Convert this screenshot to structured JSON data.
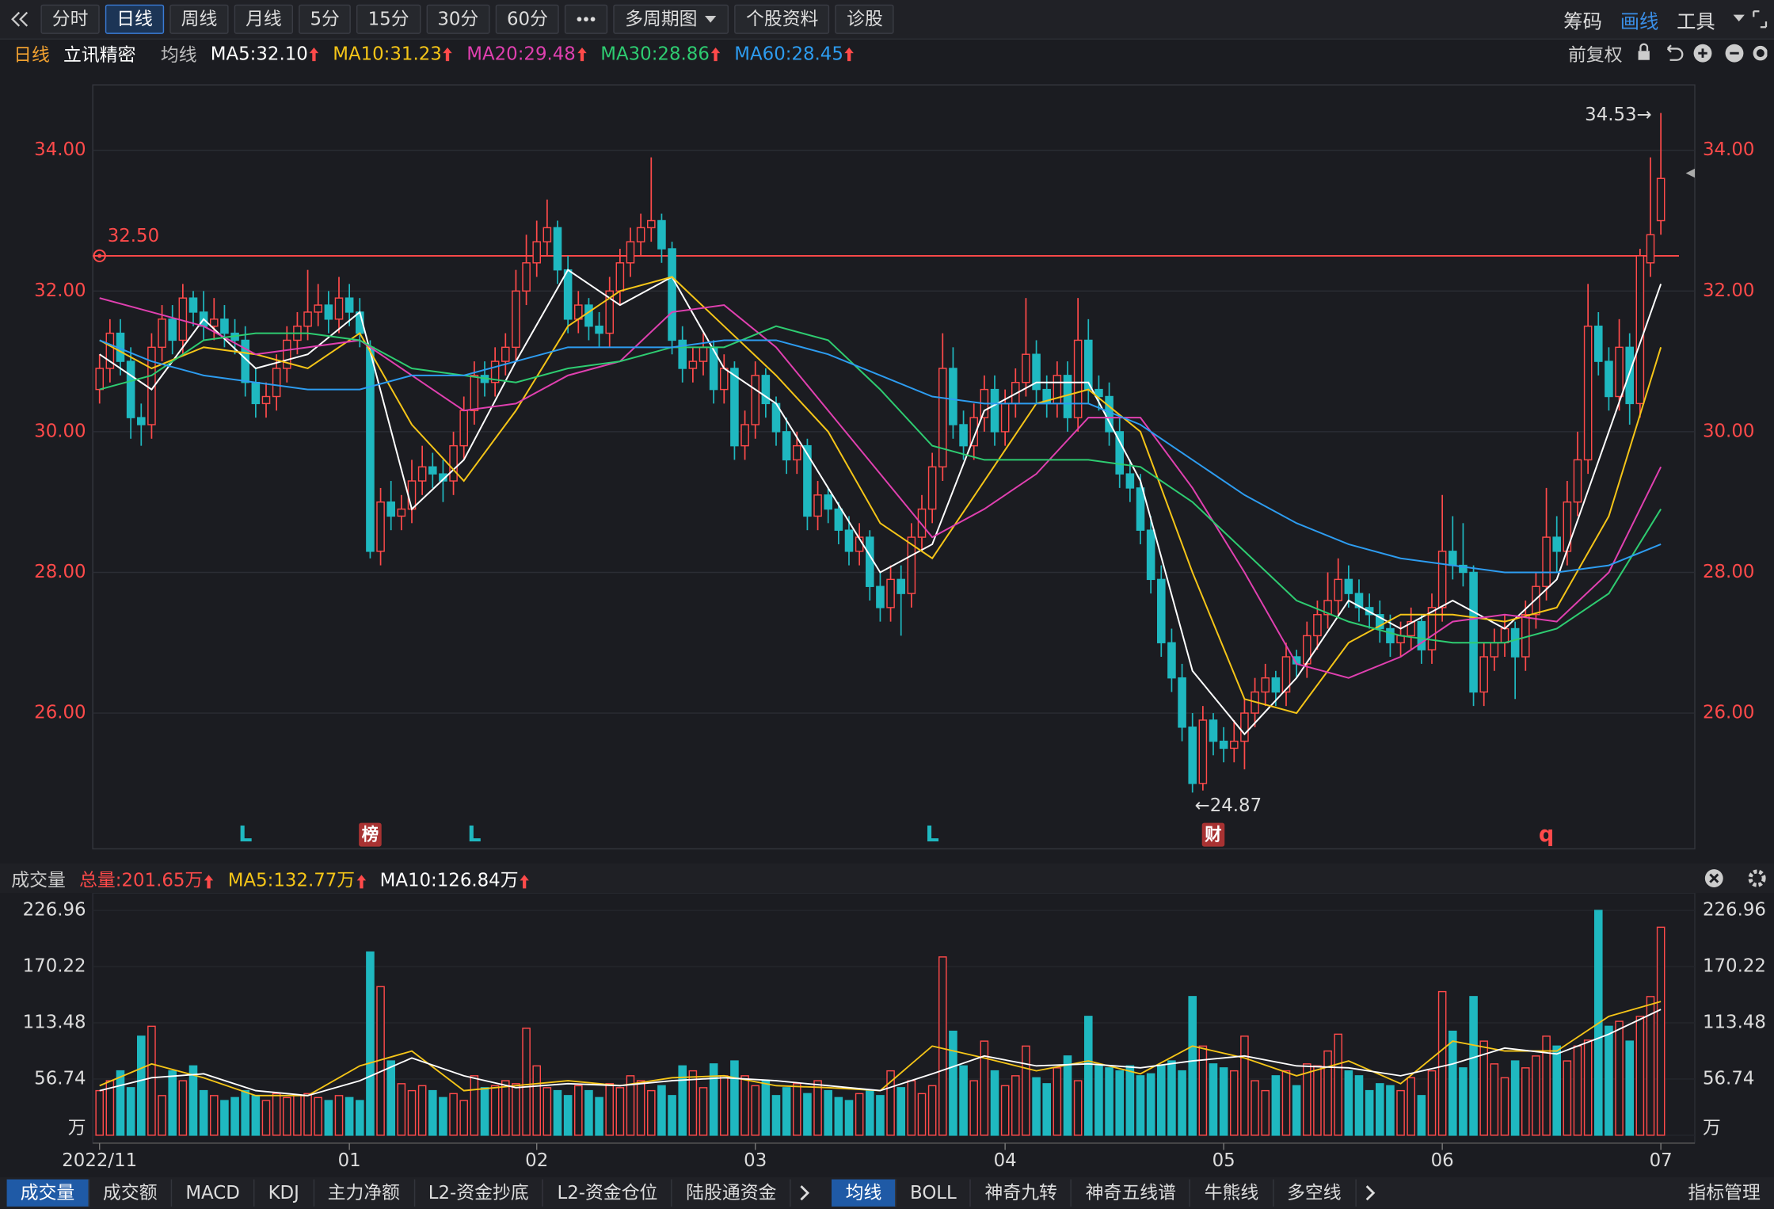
{
  "toolbar": {
    "tabs": [
      "分时",
      "日线",
      "周线",
      "月线",
      "5分",
      "15分",
      "30分",
      "60分",
      "多周期图",
      "个股资料",
      "诊股"
    ],
    "active": 1,
    "right": [
      "筹码",
      "画线",
      "工具"
    ]
  },
  "info": {
    "period": "日线",
    "stock": "立讯精密",
    "indicator": "均线",
    "restore": "前复权"
  },
  "chart_data": [
    {
      "type": "candlestick",
      "up_color": "#ff4a4a",
      "down_color": "#1fb8c0",
      "xlim": [
        0,
        150
      ],
      "ylim": [
        24.07,
        34.93
      ],
      "yticks": [
        {
          "value": 26,
          "label": "26.00"
        },
        {
          "value": 28,
          "label": "28.00"
        },
        {
          "value": 30,
          "label": "30.00"
        },
        {
          "value": 32,
          "label": "32.00"
        },
        {
          "value": 34,
          "label": "34.00"
        }
      ],
      "grid": true,
      "open": [
        30.6,
        30.9,
        31.4,
        31.0,
        30.2,
        30.1,
        31.2,
        31.6,
        31.3,
        31.9,
        31.7,
        31.5,
        31.6,
        31.4,
        31.3,
        30.7,
        30.4,
        30.5,
        30.9,
        31.3,
        31.5,
        31.7,
        31.8,
        31.6,
        31.9,
        31.7,
        31.2,
        28.3,
        29.0,
        28.8,
        28.9,
        29.3,
        29.5,
        29.4,
        29.3,
        29.8,
        30.3,
        30.8,
        30.7,
        31.0,
        31.2,
        32.0,
        32.4,
        32.7,
        32.9,
        32.3,
        31.6,
        31.8,
        31.5,
        31.4,
        32.0,
        32.4,
        32.7,
        32.9,
        33.0,
        32.6,
        31.3,
        30.9,
        31.0,
        31.2,
        30.6,
        30.9,
        29.8,
        30.1,
        30.8,
        30.4,
        30.0,
        29.6,
        29.8,
        28.8,
        29.1,
        28.9,
        28.6,
        28.3,
        28.5,
        27.8,
        27.5,
        27.9,
        27.7,
        28.5,
        28.9,
        29.5,
        30.9,
        30.1,
        29.8,
        30.2,
        30.6,
        30.0,
        30.4,
        30.7,
        31.1,
        30.6,
        30.4,
        30.8,
        30.2,
        31.3,
        30.6,
        30.5,
        30.0,
        29.4,
        29.2,
        28.6,
        27.9,
        27.0,
        26.5,
        25.8,
        25.0,
        25.9,
        25.6,
        25.5,
        25.6,
        26.0,
        26.3,
        26.5,
        26.3,
        26.8,
        26.7,
        27.1,
        27.4,
        27.6,
        27.9,
        27.7,
        27.5,
        27.4,
        27.2,
        27.0,
        27.1,
        27.3,
        26.9,
        27.5,
        28.3,
        28.1,
        28.0,
        26.3,
        26.8,
        27.0,
        27.2,
        26.8,
        27.4,
        27.8,
        28.5,
        28.3,
        29.0,
        29.6,
        31.5,
        31.0,
        30.5,
        31.2,
        30.4,
        32.4,
        33.0
      ],
      "high": [
        31.1,
        31.6,
        31.6,
        31.2,
        30.4,
        31.4,
        31.8,
        31.8,
        32.1,
        32.0,
        32.0,
        31.9,
        31.8,
        31.6,
        31.5,
        30.9,
        30.7,
        31.1,
        31.5,
        31.7,
        32.3,
        32.1,
        32.0,
        32.2,
        32.1,
        31.9,
        31.3,
        29.2,
        29.3,
        29.1,
        29.6,
        29.8,
        29.7,
        29.6,
        30.0,
        30.5,
        31.0,
        31.0,
        31.2,
        31.4,
        32.3,
        32.8,
        33.0,
        33.3,
        33.0,
        32.5,
        32.0,
        31.9,
        31.7,
        32.2,
        32.6,
        32.9,
        33.1,
        33.9,
        33.1,
        32.7,
        31.5,
        31.2,
        31.4,
        31.3,
        31.1,
        31.0,
        30.3,
        31.0,
        30.9,
        30.5,
        30.2,
        30.0,
        29.9,
        29.3,
        29.2,
        29.0,
        28.8,
        28.7,
        28.6,
        28.0,
        28.1,
        28.1,
        28.7,
        29.1,
        29.7,
        31.4,
        31.2,
        30.3,
        30.4,
        30.8,
        30.8,
        30.6,
        30.9,
        31.9,
        31.3,
        30.8,
        31.0,
        31.0,
        31.9,
        31.6,
        30.8,
        30.7,
        30.2,
        29.6,
        29.4,
        28.8,
        28.1,
        27.2,
        26.7,
        26.0,
        26.1,
        26.0,
        25.8,
        25.9,
        26.2,
        26.5,
        26.7,
        26.6,
        27.0,
        26.9,
        27.3,
        27.6,
        28.0,
        28.2,
        28.1,
        27.9,
        27.7,
        27.6,
        27.4,
        27.3,
        27.5,
        27.4,
        27.7,
        29.1,
        28.8,
        28.7,
        28.1,
        27.0,
        27.2,
        27.4,
        27.3,
        27.6,
        28.0,
        29.2,
        28.8,
        29.3,
        30.0,
        32.1,
        31.7,
        31.2,
        31.6,
        31.4,
        32.6,
        33.9,
        34.53
      ],
      "low": [
        30.4,
        30.7,
        30.8,
        29.9,
        29.8,
        29.9,
        31.0,
        31.1,
        31.1,
        31.5,
        31.3,
        31.3,
        31.2,
        31.1,
        30.5,
        30.2,
        30.2,
        30.3,
        30.7,
        31.1,
        31.3,
        31.5,
        31.4,
        31.4,
        31.5,
        31.2,
        28.2,
        28.1,
        28.6,
        28.6,
        28.7,
        29.1,
        29.2,
        29.0,
        29.1,
        29.6,
        30.1,
        30.5,
        30.5,
        30.8,
        31.0,
        31.8,
        32.2,
        32.5,
        32.1,
        31.4,
        31.4,
        31.3,
        31.2,
        31.2,
        31.8,
        32.2,
        32.5,
        32.7,
        32.4,
        31.1,
        30.7,
        30.7,
        30.8,
        30.4,
        30.4,
        29.6,
        29.6,
        29.9,
        30.2,
        29.8,
        29.4,
        29.4,
        28.6,
        28.6,
        28.7,
        28.4,
        28.1,
        28.1,
        27.6,
        27.3,
        27.3,
        27.1,
        27.5,
        28.3,
        28.7,
        29.3,
        29.9,
        29.6,
        29.6,
        30.0,
        29.8,
        29.8,
        30.2,
        30.5,
        30.4,
        30.2,
        30.2,
        30.0,
        30.0,
        30.4,
        30.3,
        29.8,
        29.2,
        29.0,
        28.4,
        27.7,
        26.8,
        26.3,
        25.6,
        24.87,
        24.9,
        25.4,
        25.3,
        25.3,
        25.2,
        25.8,
        26.1,
        26.1,
        26.1,
        26.5,
        26.5,
        26.9,
        27.2,
        27.4,
        27.5,
        27.3,
        27.2,
        27.0,
        26.8,
        26.8,
        26.9,
        26.7,
        26.7,
        27.3,
        27.9,
        27.8,
        26.1,
        26.1,
        26.6,
        26.8,
        26.2,
        26.6,
        27.2,
        27.6,
        28.0,
        28.1,
        28.8,
        29.4,
        30.8,
        30.3,
        30.3,
        30.1,
        30.2,
        32.2,
        32.8
      ],
      "close": [
        30.9,
        31.4,
        31.0,
        30.2,
        30.1,
        31.2,
        31.6,
        31.3,
        31.9,
        31.7,
        31.5,
        31.6,
        31.4,
        31.3,
        30.7,
        30.4,
        30.5,
        30.9,
        31.3,
        31.5,
        31.7,
        31.8,
        31.6,
        31.9,
        31.7,
        31.4,
        28.3,
        29.0,
        28.8,
        28.9,
        29.3,
        29.5,
        29.4,
        29.3,
        29.8,
        30.3,
        30.8,
        30.7,
        31.0,
        31.2,
        32.0,
        32.4,
        32.7,
        32.9,
        32.3,
        31.6,
        31.8,
        31.5,
        31.4,
        32.0,
        32.4,
        32.7,
        32.9,
        33.0,
        32.6,
        31.3,
        30.9,
        31.0,
        31.2,
        30.6,
        30.9,
        29.8,
        30.1,
        30.8,
        30.4,
        30.0,
        29.6,
        29.8,
        28.8,
        29.1,
        28.9,
        28.6,
        28.3,
        28.5,
        27.8,
        27.5,
        27.9,
        27.7,
        28.5,
        28.9,
        29.5,
        30.9,
        30.1,
        29.8,
        30.2,
        30.6,
        30.0,
        30.4,
        30.7,
        31.1,
        30.6,
        30.4,
        30.8,
        30.2,
        31.3,
        30.6,
        30.5,
        30.0,
        29.4,
        29.2,
        28.6,
        27.9,
        27.0,
        26.5,
        25.8,
        25.0,
        25.9,
        25.6,
        25.5,
        25.6,
        26.0,
        26.3,
        26.5,
        26.3,
        26.8,
        26.7,
        27.1,
        27.4,
        27.6,
        27.9,
        27.7,
        27.5,
        27.4,
        27.2,
        27.0,
        27.1,
        27.3,
        26.9,
        27.5,
        28.3,
        28.1,
        28.0,
        26.3,
        26.8,
        27.0,
        27.2,
        26.8,
        27.4,
        27.8,
        28.5,
        28.3,
        29.0,
        29.6,
        31.5,
        31.0,
        30.5,
        31.2,
        30.4,
        32.5,
        32.8,
        33.6
      ],
      "line_x": [
        0,
        5,
        10,
        15,
        20,
        25,
        30,
        35,
        40,
        45,
        50,
        55,
        60,
        65,
        70,
        75,
        80,
        85,
        90,
        95,
        100,
        105,
        110,
        115,
        120,
        125,
        130,
        135,
        140,
        145,
        150
      ],
      "series": [
        {
          "name": "MA5:32.10",
          "color": "#ffffff",
          "values": [
            31.1,
            30.6,
            31.6,
            30.9,
            31.1,
            31.7,
            28.9,
            29.6,
            31.0,
            32.3,
            31.8,
            32.2,
            30.9,
            30.4,
            29.2,
            28.0,
            28.4,
            30.3,
            30.7,
            30.7,
            29.3,
            26.6,
            25.7,
            26.5,
            27.6,
            27.2,
            27.6,
            27.2,
            27.9,
            30.0,
            32.1
          ]
        },
        {
          "name": "MA10:31.23",
          "color": "#f5c518",
          "values": [
            31.3,
            30.9,
            31.2,
            31.1,
            30.9,
            31.4,
            30.1,
            29.3,
            30.3,
            31.5,
            32.0,
            32.2,
            31.5,
            30.8,
            30.0,
            28.7,
            28.2,
            29.3,
            30.4,
            30.6,
            30.0,
            28.0,
            26.2,
            26.0,
            27.0,
            27.4,
            27.4,
            27.3,
            27.5,
            28.8,
            31.2
          ]
        },
        {
          "name": "MA20:29.48",
          "color": "#e040b0",
          "values": [
            31.9,
            31.7,
            31.5,
            31.1,
            31.2,
            31.3,
            30.8,
            30.3,
            30.4,
            30.8,
            31.0,
            31.7,
            31.8,
            31.2,
            30.3,
            29.4,
            28.5,
            28.9,
            29.4,
            30.2,
            30.2,
            29.2,
            28.0,
            26.7,
            26.5,
            26.8,
            27.3,
            27.4,
            27.3,
            28.0,
            29.5
          ]
        },
        {
          "name": "MA30:28.86",
          "color": "#2ecc71",
          "values": [
            30.6,
            30.8,
            31.3,
            31.4,
            31.4,
            31.3,
            30.9,
            30.8,
            30.7,
            30.9,
            31.0,
            31.2,
            31.2,
            31.5,
            31.3,
            30.6,
            29.8,
            29.6,
            29.6,
            29.6,
            29.5,
            29.0,
            28.3,
            27.6,
            27.3,
            27.1,
            27.0,
            27.0,
            27.2,
            27.7,
            28.9
          ]
        },
        {
          "name": "MA60:28.45",
          "color": "#2d9cf0",
          "values": [
            31.3,
            31.0,
            30.8,
            30.7,
            30.6,
            30.6,
            30.8,
            30.8,
            31.0,
            31.2,
            31.2,
            31.2,
            31.3,
            31.3,
            31.1,
            30.8,
            30.5,
            30.4,
            30.4,
            30.4,
            30.1,
            29.6,
            29.1,
            28.7,
            28.4,
            28.2,
            28.1,
            28.0,
            28.0,
            28.1,
            28.4
          ]
        }
      ],
      "hline": {
        "value": 32.5,
        "label": "32.50",
        "color": "#ff4a4a"
      },
      "max_label": "34.53→",
      "min_label": "←24.87",
      "markers": [
        {
          "label": "L",
          "x": 14,
          "color": "#1fb8c0",
          "boxed": false
        },
        {
          "label": "榜",
          "x": 26,
          "color": "#a83232",
          "boxed": true
        },
        {
          "label": "L",
          "x": 36,
          "color": "#1fb8c0",
          "boxed": false
        },
        {
          "label": "L",
          "x": 80,
          "color": "#1fb8c0",
          "boxed": false
        },
        {
          "label": "财",
          "x": 107,
          "color": "#a83232",
          "boxed": true
        },
        {
          "label": "q",
          "x": 139,
          "color": "#ff4a4a",
          "boxed": false
        }
      ]
    },
    {
      "type": "bar",
      "title": "成交量",
      "total_label": "总量:201.65万",
      "xlim": [
        0,
        150
      ],
      "ylim": [
        0,
        240
      ],
      "yticks": [
        {
          "value": 0,
          "label": "万"
        },
        56.74,
        113.48,
        170.22,
        226.96
      ],
      "values": [
        45,
        55,
        65,
        48,
        100,
        110,
        40,
        65,
        55,
        70,
        45,
        40,
        35,
        38,
        45,
        40,
        35,
        42,
        38,
        40,
        42,
        38,
        35,
        40,
        38,
        35,
        185,
        150,
        75,
        52,
        45,
        50,
        45,
        38,
        42,
        35,
        60,
        48,
        50,
        55,
        52,
        108,
        70,
        48,
        45,
        40,
        50,
        45,
        38,
        52,
        48,
        60,
        55,
        45,
        50,
        40,
        70,
        65,
        48,
        72,
        60,
        75,
        60,
        50,
        55,
        40,
        48,
        52,
        42,
        55,
        45,
        38,
        35,
        42,
        45,
        40,
        65,
        48,
        55,
        42,
        50,
        180,
        105,
        70,
        55,
        95,
        65,
        50,
        60,
        90,
        58,
        52,
        68,
        80,
        55,
        120,
        70,
        68,
        65,
        70,
        60,
        62,
        70,
        75,
        65,
        140,
        90,
        72,
        68,
        65,
        100,
        55,
        45,
        60,
        65,
        50,
        72,
        70,
        85,
        102,
        65,
        60,
        45,
        52,
        50,
        45,
        58,
        40,
        65,
        145,
        105,
        68,
        140,
        95,
        72,
        58,
        75,
        68,
        80,
        100,
        90,
        75,
        90,
        96,
        227,
        110,
        115,
        95,
        120,
        140,
        210
      ],
      "xticks": [
        {
          "value": 0,
          "label": "2022/11"
        },
        {
          "value": 24,
          "label": "01"
        },
        {
          "value": 42,
          "label": "02"
        },
        {
          "value": 63,
          "label": "03"
        },
        {
          "value": 87,
          "label": "04"
        },
        {
          "value": 108,
          "label": "05"
        },
        {
          "value": 129,
          "label": "06"
        },
        {
          "value": 150,
          "label": "07"
        }
      ],
      "line_x": [
        0,
        5,
        10,
        15,
        20,
        25,
        30,
        35,
        40,
        45,
        50,
        55,
        60,
        65,
        70,
        75,
        80,
        85,
        90,
        95,
        100,
        105,
        110,
        115,
        120,
        125,
        130,
        135,
        140,
        145,
        150
      ],
      "series": [
        {
          "name": "MA5:132.77万",
          "color": "#f5c518",
          "values": [
            50,
            72,
            58,
            40,
            40,
            70,
            85,
            45,
            50,
            55,
            50,
            58,
            60,
            50,
            48,
            45,
            90,
            78,
            65,
            75,
            62,
            90,
            78,
            60,
            75,
            52,
            95,
            85,
            85,
            120,
            135
          ]
        },
        {
          "name": "MA10:126.84万",
          "color": "#ffffff",
          "values": [
            45,
            58,
            62,
            45,
            40,
            55,
            78,
            60,
            48,
            52,
            50,
            55,
            58,
            55,
            50,
            45,
            62,
            80,
            70,
            72,
            68,
            75,
            80,
            70,
            68,
            60,
            72,
            88,
            82,
            102,
            127
          ]
        }
      ]
    }
  ],
  "bottom_tabs": {
    "left": [
      "成交量",
      "成交额",
      "MACD",
      "KDJ",
      "主力净额",
      "L2-资金抄底",
      "L2-资金仓位",
      "陆股通资金"
    ],
    "left_active": 0,
    "right": [
      "均线",
      "BOLL",
      "神奇九转",
      "神奇五线谱",
      "牛熊线",
      "多空线"
    ],
    "right_active": 0,
    "manage": "指标管理"
  }
}
